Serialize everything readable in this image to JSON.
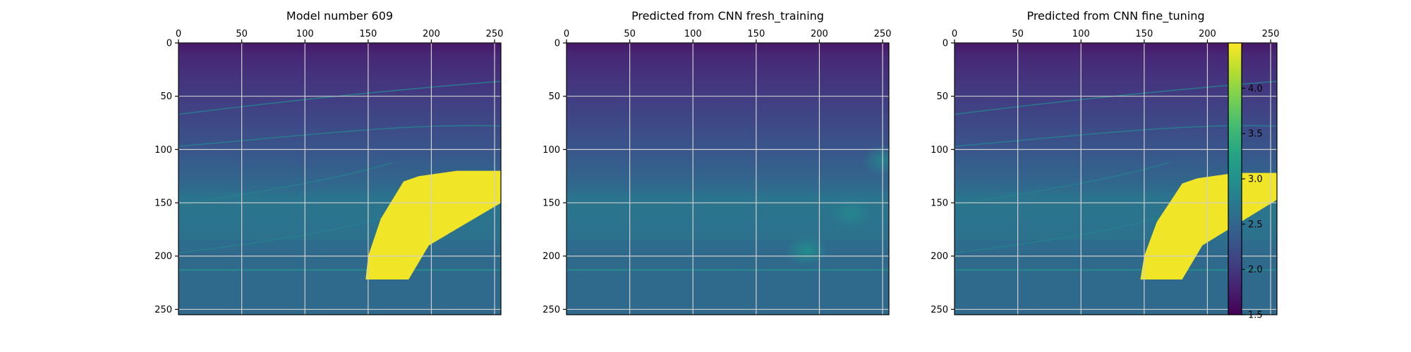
{
  "chart_data": {
    "type": "heatmap",
    "colormap": "viridis",
    "x_ticks": [
      0,
      50,
      100,
      150,
      200,
      250
    ],
    "y_ticks": [
      0,
      50,
      100,
      150,
      200,
      250
    ],
    "xlim": [
      0,
      255
    ],
    "ylim": [
      255,
      0
    ],
    "grid": true,
    "panels": [
      {
        "title": "Model number 609",
        "background_levels": [
          {
            "depth": 0,
            "value": 1.7
          },
          {
            "depth": 12,
            "value": 1.85
          },
          {
            "depth": 50,
            "value": 2.05
          },
          {
            "depth": 100,
            "value": 2.3
          },
          {
            "depth": 150,
            "value": 2.65
          },
          {
            "depth": 200,
            "value": 2.55
          },
          {
            "depth": 255,
            "value": 2.55
          }
        ],
        "lens_value": 4.45,
        "lens_outline": [
          [
            148,
            222
          ],
          [
            182,
            222
          ],
          [
            198,
            190
          ],
          [
            258,
            148
          ],
          [
            258,
            120
          ],
          [
            220,
            120
          ],
          [
            190,
            125
          ],
          [
            178,
            130
          ],
          [
            160,
            165
          ],
          [
            150,
            200
          ]
        ]
      },
      {
        "title": "Predicted from CNN fresh_training",
        "background_levels": [
          {
            "depth": 0,
            "value": 1.7
          },
          {
            "depth": 12,
            "value": 1.85
          },
          {
            "depth": 50,
            "value": 2.05
          },
          {
            "depth": 100,
            "value": 2.3
          },
          {
            "depth": 150,
            "value": 2.65
          },
          {
            "depth": 200,
            "value": 2.55
          },
          {
            "depth": 255,
            "value": 2.55
          }
        ],
        "blobs": [
          {
            "x": 190,
            "y": 195,
            "value": 3.0
          },
          {
            "x": 225,
            "y": 160,
            "value": 2.9
          },
          {
            "x": 250,
            "y": 110,
            "value": 2.9
          }
        ]
      },
      {
        "title": "Predicted from CNN fine_tuning",
        "background_levels": [
          {
            "depth": 0,
            "value": 1.7
          },
          {
            "depth": 12,
            "value": 1.85
          },
          {
            "depth": 50,
            "value": 2.05
          },
          {
            "depth": 100,
            "value": 2.3
          },
          {
            "depth": 150,
            "value": 2.65
          },
          {
            "depth": 200,
            "value": 2.55
          },
          {
            "depth": 255,
            "value": 2.55
          }
        ],
        "lens_value": 4.45,
        "lens_outline": [
          [
            147,
            222
          ],
          [
            180,
            222
          ],
          [
            196,
            190
          ],
          [
            258,
            145
          ],
          [
            258,
            122
          ],
          [
            222,
            122
          ],
          [
            192,
            127
          ],
          [
            180,
            132
          ],
          [
            160,
            168
          ],
          [
            150,
            200
          ]
        ]
      }
    ],
    "colorbar": {
      "min": 1.5,
      "max": 4.5,
      "ticks": [
        1.5,
        2.0,
        2.5,
        3.0,
        3.5,
        4.0
      ],
      "tick_labels": [
        "1.5",
        "2.0",
        "2.5",
        "3.0",
        "3.5",
        "4.0"
      ]
    }
  }
}
